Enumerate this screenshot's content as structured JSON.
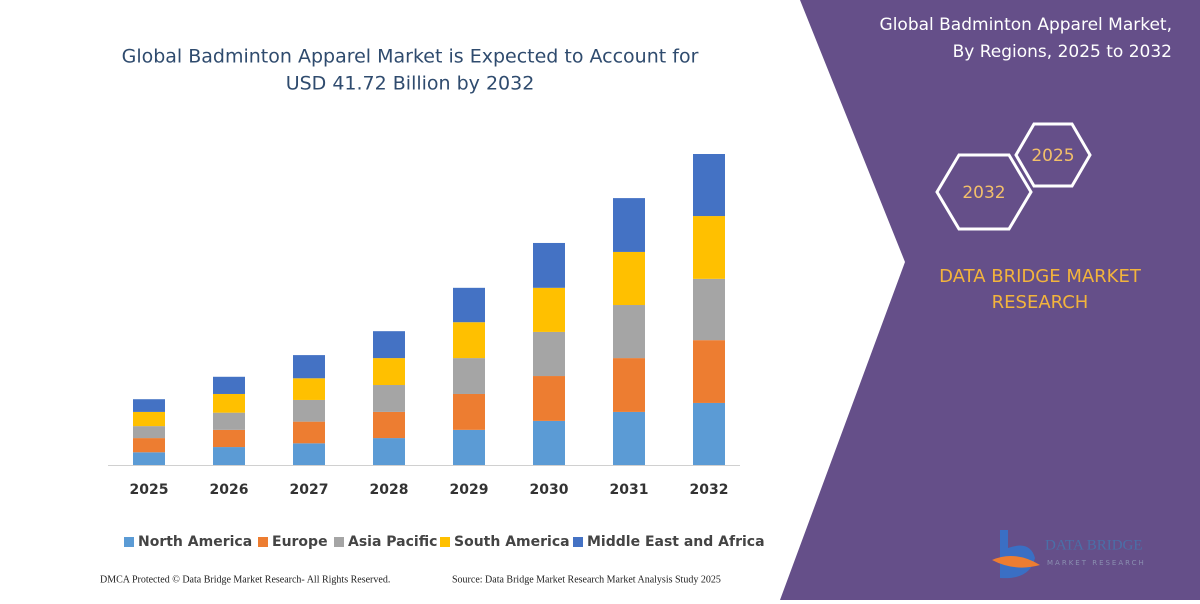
{
  "chart_data": {
    "type": "stacked_bar",
    "title": [
      "Global Badminton Apparel Market is Expected to Account for",
      "USD 41.72 Billion by 2032"
    ],
    "categories": [
      "2025",
      "2026",
      "2027",
      "2028",
      "2029",
      "2030",
      "2031",
      "2032"
    ],
    "series": [
      {
        "name": "North America",
        "color": "#5b9bd5",
        "values": [
          1.7,
          2.4,
          2.9,
          3.6,
          4.7,
          5.9,
          7.1,
          8.3
        ]
      },
      {
        "name": "Europe",
        "color": "#ed7d31",
        "values": [
          1.9,
          2.3,
          2.9,
          3.5,
          4.8,
          6.0,
          7.2,
          8.4
        ]
      },
      {
        "name": "Asia Pacific",
        "color": "#a5a5a5",
        "values": [
          1.6,
          2.3,
          2.9,
          3.6,
          4.8,
          5.9,
          7.1,
          8.2
        ]
      },
      {
        "name": "South America",
        "color": "#ffc000",
        "values": [
          1.9,
          2.5,
          2.9,
          3.6,
          4.8,
          5.9,
          7.1,
          8.4
        ]
      },
      {
        "name": "Middle East and Africa",
        "color": "#4472c4",
        "values": [
          1.7,
          2.3,
          3.1,
          3.6,
          4.6,
          6.0,
          7.2,
          8.3
        ]
      }
    ]
  },
  "side_panel": {
    "title": [
      "Global Badminton Apparel Market,",
      "By Regions, 2025 to 2032"
    ],
    "hexagons": [
      "2025",
      "2032"
    ],
    "brand": [
      "DATA BRIDGE MARKET",
      "RESEARCH"
    ]
  },
  "logo": {
    "name": "DATA BRIDGE",
    "tagline": "MARKET RESEARCH"
  },
  "footer": {
    "left": "DMCA Protected © Data Bridge Market Research-  All Rights Reserved.",
    "right": "Source: Data Bridge Market Research  Market Analysis Study 2025"
  }
}
